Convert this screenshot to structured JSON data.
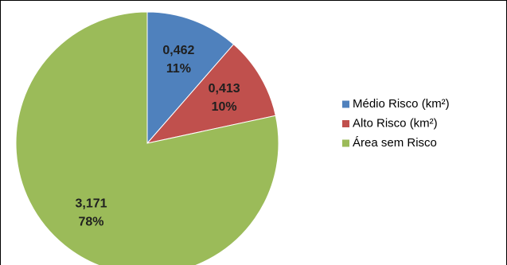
{
  "chart_data": {
    "type": "pie",
    "categories": [
      "Médio Risco (km²)",
      "Alto Risco (km²)",
      "Área sem Risco"
    ],
    "values": [
      0.462,
      0.413,
      3.171
    ],
    "value_labels": [
      "0,462",
      "0,413",
      "3,171"
    ],
    "percent_labels": [
      "11%",
      "10%",
      "78%"
    ],
    "colors": [
      "#4f81bd",
      "#c0504d",
      "#9bbb59"
    ],
    "legend": "right"
  }
}
